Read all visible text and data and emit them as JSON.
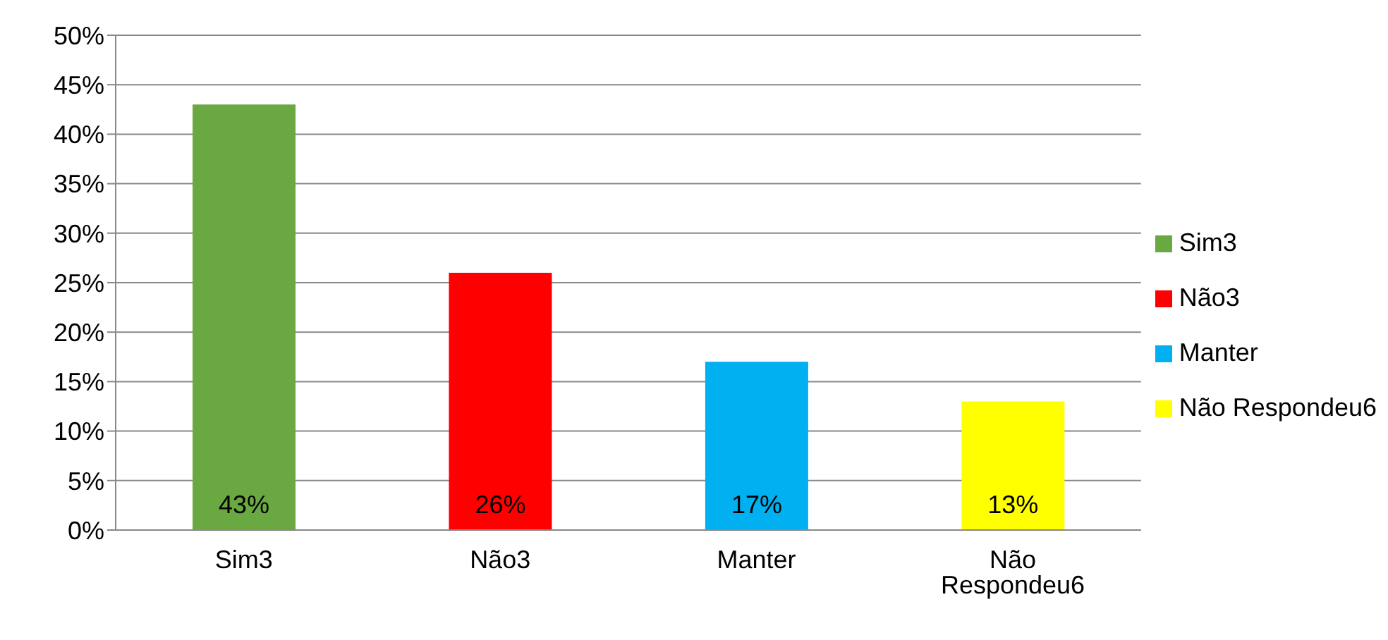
{
  "chart_data": {
    "type": "bar",
    "categories": [
      "Sim3",
      "Não3",
      "Manter",
      "Não Respondeu6"
    ],
    "stacked": true,
    "series": [
      {
        "name": "Sim3",
        "color": "#6aa842",
        "values": [
          43,
          null,
          null,
          null
        ],
        "value_labels": [
          "43%",
          null,
          null,
          null
        ]
      },
      {
        "name": "Não3",
        "color": "#ff0000",
        "values": [
          null,
          26,
          null,
          null
        ],
        "value_labels": [
          null,
          "26%",
          null,
          null
        ]
      },
      {
        "name": "Manter",
        "color": "#00b0f0",
        "values": [
          null,
          null,
          17,
          null
        ],
        "value_labels": [
          null,
          null,
          "17%",
          null
        ]
      },
      {
        "name": "Não Respondeu6",
        "color": "#ffff00",
        "values": [
          null,
          null,
          null,
          13
        ],
        "value_labels": [
          null,
          null,
          null,
          "13%"
        ]
      }
    ],
    "ylim": [
      0,
      50
    ],
    "yticks": [
      {
        "value": 0,
        "label": "0%"
      },
      {
        "value": 5,
        "label": "5%"
      },
      {
        "value": 10,
        "label": "10%"
      },
      {
        "value": 15,
        "label": "15%"
      },
      {
        "value": 20,
        "label": "20%"
      },
      {
        "value": 25,
        "label": "25%"
      },
      {
        "value": 30,
        "label": "30%"
      },
      {
        "value": 35,
        "label": "35%"
      },
      {
        "value": 40,
        "label": "40%"
      },
      {
        "value": 45,
        "label": "45%"
      },
      {
        "value": 50,
        "label": "50%"
      }
    ],
    "grid": "y",
    "legend": "right"
  }
}
